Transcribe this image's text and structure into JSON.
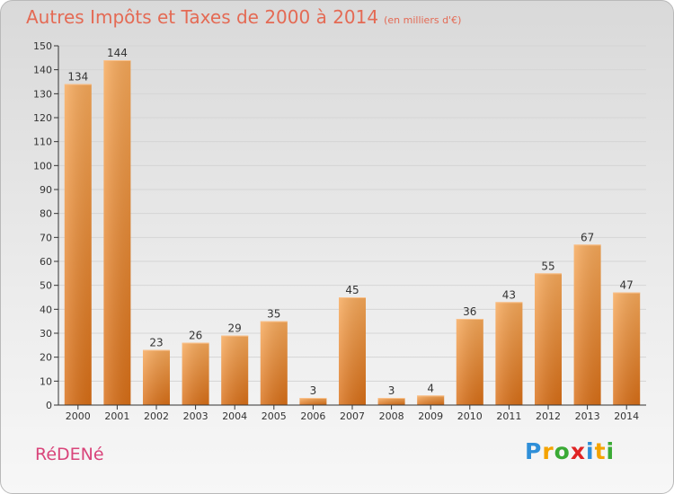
{
  "title": "Autres Impôts et Taxes de 2000 à 2014",
  "unit": "(en milliers d'€)",
  "commune": "RéDENé",
  "logo": {
    "letters": [
      "P",
      "r",
      "o",
      "x",
      "i",
      "t",
      "i"
    ],
    "colors": [
      "#2f8fd8",
      "#f4a300",
      "#3aaa35",
      "#e02424",
      "#2f8fd8",
      "#f4a300",
      "#3aaa35"
    ]
  },
  "colors": {
    "bar_light": "#f7a95a",
    "bar_dark": "#d96f17",
    "axis": "#333333",
    "grid": "#d5d5d5",
    "title": "#e46a54"
  },
  "chart_data": {
    "type": "bar",
    "categories": [
      "2000",
      "2001",
      "2002",
      "2003",
      "2004",
      "2005",
      "2006",
      "2007",
      "2008",
      "2009",
      "2010",
      "2011",
      "2012",
      "2013",
      "2014"
    ],
    "values": [
      134,
      144,
      23,
      26,
      29,
      35,
      3,
      45,
      3,
      4,
      36,
      43,
      55,
      67,
      47
    ],
    "ylim": [
      0,
      150
    ],
    "yticks": [
      0,
      10,
      20,
      30,
      40,
      50,
      60,
      70,
      80,
      90,
      100,
      110,
      120,
      130,
      140,
      150
    ],
    "grid": true,
    "data_labels": true
  }
}
